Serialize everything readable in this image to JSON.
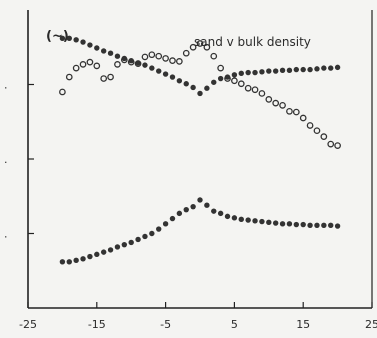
{
  "chart_data": {
    "type": "scatter",
    "title": "sand v bulk density",
    "panel_label": "(~)",
    "xlabel": "",
    "ylabel": "",
    "xlim": [
      -25,
      25
    ],
    "ylim": [
      0,
      4
    ],
    "x_ticks": [
      -25,
      -15,
      -5,
      5,
      15,
      25
    ],
    "x_tick_labels": [
      "-25",
      "-15",
      "-5",
      "5",
      "15",
      "25"
    ],
    "y_ticks": [
      1,
      2,
      3
    ],
    "y_tick_labels": [
      ".",
      ".",
      "."
    ],
    "grid": false,
    "legend": "none",
    "colors": {
      "marker": "#333333",
      "axis": "#222222",
      "background": "#f4f4f2"
    },
    "series": [
      {
        "marker": "filled",
        "x": [
          -20,
          -19,
          -18,
          -17,
          -16,
          -15,
          -14,
          -13,
          -12,
          -11,
          -10,
          -9,
          -8,
          -7,
          -6,
          -5,
          -4,
          -3,
          -2,
          -1,
          0,
          1,
          2,
          3,
          4,
          5,
          6,
          7,
          8,
          9,
          10,
          11,
          12,
          13,
          14,
          15,
          16,
          17,
          18,
          19,
          20
        ],
        "y": [
          3.62,
          3.62,
          3.6,
          3.57,
          3.53,
          3.49,
          3.45,
          3.42,
          3.38,
          3.35,
          3.32,
          3.29,
          3.26,
          3.22,
          3.18,
          3.14,
          3.1,
          3.05,
          3.01,
          2.96,
          2.88,
          2.95,
          3.03,
          3.08,
          3.1,
          3.13,
          3.15,
          3.16,
          3.16,
          3.17,
          3.18,
          3.18,
          3.19,
          3.19,
          3.2,
          3.2,
          3.2,
          3.21,
          3.22,
          3.22,
          3.23
        ]
      },
      {
        "marker": "open",
        "x": [
          -20,
          -19,
          -18,
          -17,
          -16,
          -15,
          -14,
          -13,
          -12,
          -11,
          -10,
          -9,
          -8,
          -7,
          -6,
          -5,
          -4,
          -3,
          -2,
          -1,
          0,
          1,
          2,
          3,
          4,
          5,
          6,
          7,
          8,
          9,
          10,
          11,
          12,
          13,
          14,
          15,
          16,
          17,
          18,
          19,
          20
        ],
        "y": [
          2.9,
          3.1,
          3.22,
          3.27,
          3.3,
          3.25,
          3.08,
          3.1,
          3.27,
          3.33,
          3.3,
          3.28,
          3.37,
          3.4,
          3.38,
          3.35,
          3.32,
          3.31,
          3.42,
          3.5,
          3.55,
          3.5,
          3.38,
          3.22,
          3.08,
          3.05,
          3.01,
          2.95,
          2.93,
          2.88,
          2.8,
          2.75,
          2.72,
          2.64,
          2.63,
          2.55,
          2.45,
          2.38,
          2.3,
          2.2,
          2.18
        ]
      },
      {
        "marker": "filled",
        "x": [
          -20,
          -19,
          -18,
          -17,
          -16,
          -15,
          -14,
          -13,
          -12,
          -11,
          -10,
          -9,
          -8,
          -7,
          -6,
          -5,
          -4,
          -3,
          -2,
          -1,
          0,
          1,
          2,
          3,
          4,
          5,
          6,
          7,
          8,
          9,
          10,
          11,
          12,
          13,
          14,
          15,
          16,
          17,
          18,
          19,
          20
        ],
        "y": [
          0.62,
          0.62,
          0.64,
          0.66,
          0.69,
          0.72,
          0.75,
          0.78,
          0.82,
          0.85,
          0.88,
          0.92,
          0.96,
          1.0,
          1.06,
          1.13,
          1.2,
          1.27,
          1.32,
          1.36,
          1.45,
          1.38,
          1.3,
          1.27,
          1.23,
          1.21,
          1.19,
          1.18,
          1.17,
          1.16,
          1.15,
          1.14,
          1.13,
          1.13,
          1.12,
          1.12,
          1.11,
          1.11,
          1.11,
          1.11,
          1.1
        ]
      }
    ]
  }
}
